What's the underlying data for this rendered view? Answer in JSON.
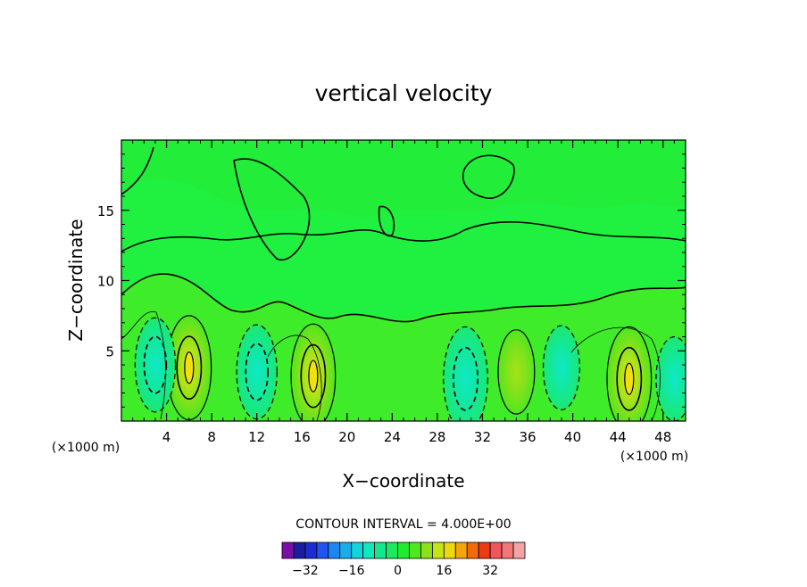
{
  "chart_data": {
    "type": "contour",
    "title": "vertical velocity",
    "xlabel": "X−coordinate",
    "ylabel": "Z−coordinate",
    "x_unit_left": "(×1000 m)",
    "x_unit_right": "(×1000 m)",
    "xlim": [
      0,
      50
    ],
    "ylim": [
      0,
      20
    ],
    "x_ticks": [
      4,
      8,
      12,
      16,
      20,
      24,
      28,
      32,
      36,
      40,
      44,
      48
    ],
    "x_tick_labels": [
      "4",
      "8",
      "12",
      "16",
      "20",
      "24",
      "28",
      "32",
      "36",
      "40",
      "44",
      "48"
    ],
    "y_ticks": [
      5,
      10,
      15
    ],
    "y_tick_labels": [
      "5",
      "10",
      "15"
    ],
    "contour_interval_text": "CONTOUR INTERVAL = 4.000E+00",
    "colorbar": {
      "colors": [
        "#7a0fa8",
        "#1c1ca0",
        "#1b2cd2",
        "#1e56ef",
        "#1e86f0",
        "#1aaee8",
        "#14d3dc",
        "#10e8be",
        "#12e88e",
        "#1ce860",
        "#22ea30",
        "#4ee81e",
        "#8ee01c",
        "#c6e414",
        "#ecd80c",
        "#f4a40c",
        "#f06c0a",
        "#ec3a14",
        "#f0565a",
        "#f07878",
        "#f4a4a4"
      ],
      "tick_values": [
        -32,
        -16,
        0,
        16,
        32
      ],
      "tick_labels": [
        "−32",
        "−16",
        "0",
        "16",
        "32"
      ]
    },
    "background_color": "#20f040",
    "features": [
      {
        "x": 6,
        "y": 3.8,
        "value": 16
      },
      {
        "x": 17,
        "y": 3.2,
        "value": 16
      },
      {
        "x": 45,
        "y": 3.0,
        "value": 16
      },
      {
        "x": 35,
        "y": 3.5,
        "value": 8
      },
      {
        "x": 3,
        "y": 4.0,
        "value": -12
      },
      {
        "x": 12,
        "y": 3.5,
        "value": -12
      },
      {
        "x": 30.5,
        "y": 3.0,
        "value": -16
      },
      {
        "x": 39,
        "y": 3.8,
        "value": -8
      },
      {
        "x": 49,
        "y": 3.0,
        "value": -8
      }
    ]
  }
}
